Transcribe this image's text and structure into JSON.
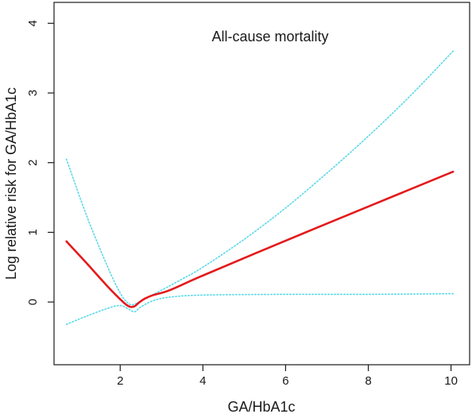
{
  "chart_data": {
    "type": "line",
    "title": "All-cause mortality",
    "xlabel": "GA/HbA1c",
    "ylabel": "Log relative risk for GA/HbA1c",
    "xlim": [
      0.4,
      10.45
    ],
    "ylim": [
      -0.9,
      4.3
    ],
    "x_ticks": [
      2,
      4,
      6,
      8,
      10
    ],
    "y_ticks": [
      0,
      1,
      2,
      3,
      4
    ],
    "grid": false,
    "legend": "none",
    "series": [
      {
        "role": "estimate",
        "color": "#e31a1c",
        "style": "solid",
        "x": [
          0.7,
          1.2,
          1.7,
          2.0,
          2.15,
          2.25,
          2.35,
          2.45,
          2.6,
          2.8,
          3.2,
          4.0,
          6.0,
          8.0,
          10.05
        ],
        "y": [
          0.87,
          0.55,
          0.22,
          0.04,
          -0.04,
          -0.07,
          -0.06,
          -0.01,
          0.05,
          0.1,
          0.17,
          0.38,
          0.88,
          1.37,
          1.87
        ]
      },
      {
        "role": "upper 95% CI",
        "color": "#5ad8e8",
        "style": "dotted",
        "x": [
          0.7,
          1.2,
          1.7,
          2.0,
          2.2,
          2.35,
          2.6,
          3.0,
          3.5,
          4.0,
          5.0,
          6.0,
          7.0,
          8.0,
          9.0,
          10.05
        ],
        "y": [
          2.05,
          1.22,
          0.5,
          0.13,
          -0.02,
          -0.03,
          0.05,
          0.17,
          0.33,
          0.5,
          0.9,
          1.35,
          1.85,
          2.38,
          2.95,
          3.6
        ]
      },
      {
        "role": "lower 95% CI",
        "color": "#5ad8e8",
        "style": "dotted",
        "x": [
          0.7,
          1.2,
          1.7,
          2.0,
          2.2,
          2.35,
          2.5,
          2.8,
          3.2,
          4.0,
          6.0,
          8.0,
          10.05
        ],
        "y": [
          -0.32,
          -0.2,
          -0.09,
          -0.05,
          -0.1,
          -0.14,
          -0.07,
          0.02,
          0.07,
          0.1,
          0.11,
          0.11,
          0.12
        ]
      }
    ]
  }
}
